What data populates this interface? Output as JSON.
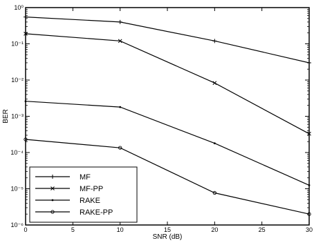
{
  "chart_data": {
    "type": "line",
    "title": "",
    "xlabel": "SNR (dB)",
    "ylabel": "BER",
    "x": [
      0,
      10,
      20,
      30
    ],
    "xlim": [
      0,
      30
    ],
    "xticks": [
      0,
      5,
      10,
      15,
      20,
      25,
      30
    ],
    "xtick_labels": [
      "0",
      "5",
      "10",
      "15",
      "20",
      "25",
      "30"
    ],
    "y_scale": "log",
    "ylim": [
      1e-06,
      1
    ],
    "yticks": [
      1e-06,
      1e-05,
      0.0001,
      0.001,
      0.01,
      0.1,
      1
    ],
    "ytick_labels": [
      "10⁻⁶",
      "10⁻⁵",
      "10⁻⁴",
      "10⁻³",
      "10⁻²",
      "10⁻¹",
      "10⁰"
    ],
    "grid": false,
    "legend_position": "bottom-left",
    "series": [
      {
        "name": "MF",
        "marker": "+",
        "values": [
          0.55,
          0.4,
          0.12,
          0.03
        ]
      },
      {
        "name": "MF-PP",
        "marker": "x",
        "values": [
          0.19,
          0.12,
          0.0083,
          0.00033
        ]
      },
      {
        "name": "RAKE",
        "marker": ".",
        "values": [
          0.0026,
          0.0018,
          0.00018,
          1.25e-05
        ]
      },
      {
        "name": "RAKE-PP",
        "marker": "o",
        "values": [
          0.00023,
          0.000135,
          7.7e-06,
          2e-06
        ]
      }
    ],
    "colors": {
      "line": "#000000",
      "axis": "#000000",
      "background": "#ffffff"
    }
  }
}
